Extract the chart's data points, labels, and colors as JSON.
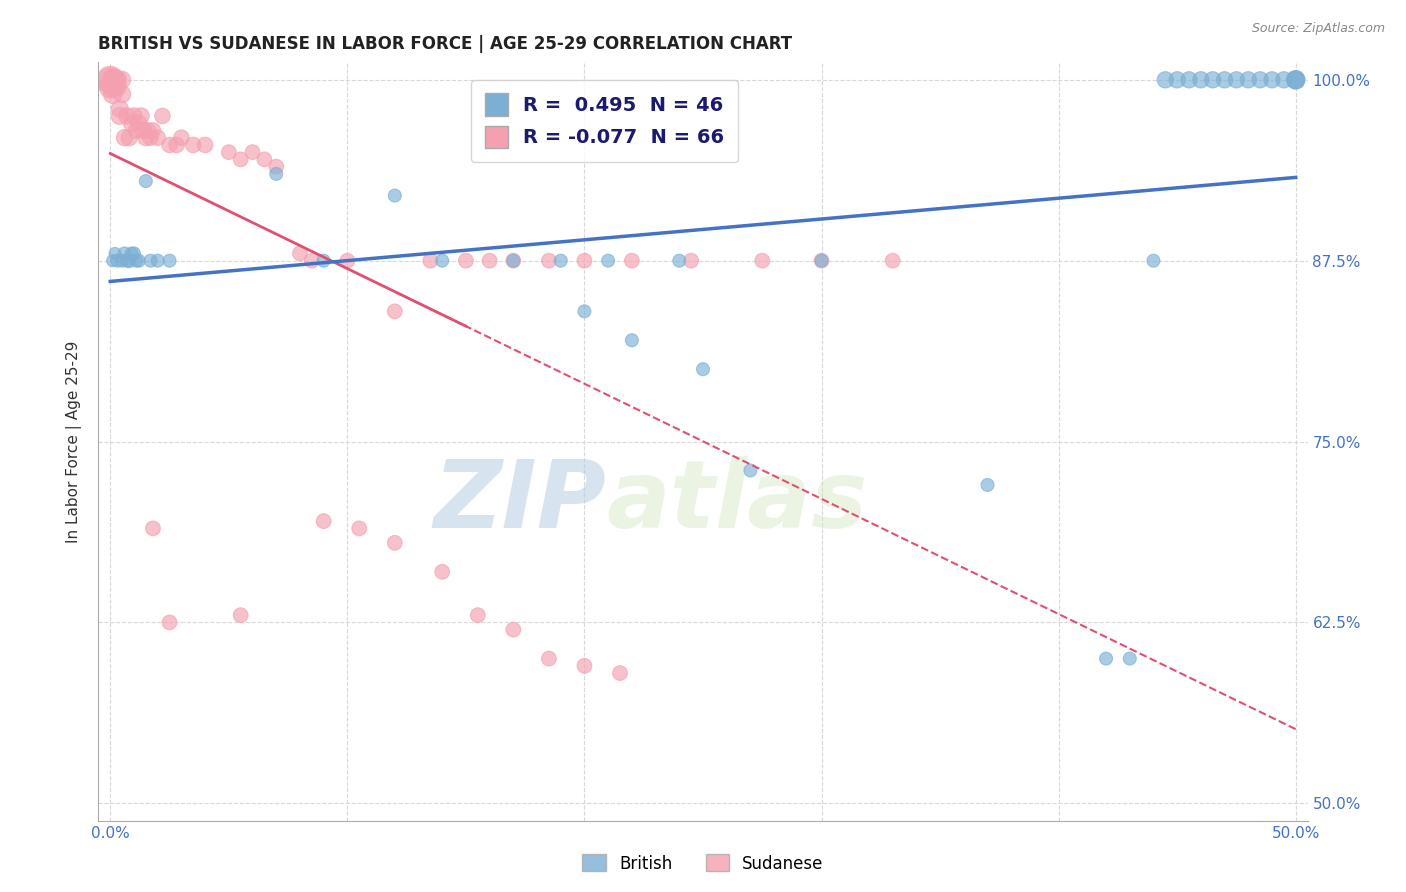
{
  "title": "BRITISH VS SUDANESE IN LABOR FORCE | AGE 25-29 CORRELATION CHART",
  "source": "Source: ZipAtlas.com",
  "ylabel": "In Labor Force | Age 25-29",
  "xlim": [
    -0.005,
    0.505
  ],
  "ylim": [
    0.488,
    1.012
  ],
  "xticks": [
    0.0,
    0.1,
    0.2,
    0.3,
    0.4,
    0.5
  ],
  "xticklabels": [
    "0.0%",
    "",
    "",
    "",
    "",
    "50.0%"
  ],
  "yticks": [
    0.5,
    0.625,
    0.75,
    0.875,
    1.0
  ],
  "yticklabels": [
    "50.0%",
    "62.5%",
    "75.0%",
    "87.5%",
    "100.0%"
  ],
  "british_color": "#7bafd4",
  "sudanese_color": "#f4a0b0",
  "british_line_color": "#4472c4",
  "sudanese_line_color": "#e05070",
  "british_R": 0.495,
  "british_N": 46,
  "sudanese_R": -0.077,
  "sudanese_N": 66,
  "watermark_zip": "ZIP",
  "watermark_atlas": "atlas",
  "background_color": "#ffffff",
  "grid_color": "#d8d8d8",
  "british_x": [
    0.001,
    0.002,
    0.003,
    0.005,
    0.006,
    0.007,
    0.008,
    0.009,
    0.01,
    0.011,
    0.012,
    0.015,
    0.017,
    0.02,
    0.025,
    0.07,
    0.09,
    0.12,
    0.14,
    0.17,
    0.19,
    0.2,
    0.21,
    0.22,
    0.24,
    0.25,
    0.27,
    0.3,
    0.37,
    0.42,
    0.43,
    0.44,
    0.445,
    0.45,
    0.455,
    0.46,
    0.465,
    0.47,
    0.475,
    0.48,
    0.485,
    0.49,
    0.495,
    0.5,
    0.5,
    0.5
  ],
  "british_y": [
    0.875,
    0.88,
    0.875,
    0.875,
    0.88,
    0.875,
    0.875,
    0.88,
    0.88,
    0.875,
    0.875,
    0.93,
    0.875,
    0.875,
    0.875,
    0.935,
    0.875,
    0.92,
    0.875,
    0.875,
    0.875,
    0.84,
    0.875,
    0.82,
    0.875,
    0.8,
    0.73,
    0.875,
    0.72,
    0.6,
    0.6,
    0.875,
    1.0,
    1.0,
    1.0,
    1.0,
    1.0,
    1.0,
    1.0,
    1.0,
    1.0,
    1.0,
    1.0,
    1.0,
    1.0,
    1.0
  ],
  "british_sizes": [
    30,
    30,
    35,
    35,
    35,
    35,
    40,
    35,
    35,
    35,
    35,
    35,
    35,
    35,
    35,
    35,
    35,
    35,
    35,
    35,
    35,
    35,
    35,
    35,
    35,
    35,
    35,
    35,
    35,
    35,
    35,
    35,
    55,
    55,
    55,
    55,
    55,
    55,
    55,
    55,
    55,
    55,
    55,
    55,
    70,
    70
  ],
  "sudanese_x": [
    0.0,
    0.0,
    0.0,
    0.001,
    0.001,
    0.001,
    0.002,
    0.002,
    0.003,
    0.003,
    0.004,
    0.004,
    0.005,
    0.005,
    0.006,
    0.007,
    0.008,
    0.009,
    0.01,
    0.011,
    0.012,
    0.013,
    0.014,
    0.015,
    0.016,
    0.017,
    0.018,
    0.02,
    0.022,
    0.025,
    0.028,
    0.03,
    0.035,
    0.04,
    0.05,
    0.055,
    0.06,
    0.065,
    0.07,
    0.08,
    0.085,
    0.1,
    0.12,
    0.135,
    0.15,
    0.16,
    0.17,
    0.185,
    0.2,
    0.22,
    0.245,
    0.275,
    0.3,
    0.33,
    0.09,
    0.105,
    0.12,
    0.14,
    0.155,
    0.17,
    0.185,
    0.2,
    0.215,
    0.055,
    0.025,
    0.018
  ],
  "sudanese_y": [
    1.0,
    1.0,
    0.995,
    1.0,
    0.995,
    0.99,
    1.0,
    0.995,
    1.0,
    0.995,
    0.98,
    0.975,
    1.0,
    0.99,
    0.96,
    0.975,
    0.96,
    0.97,
    0.975,
    0.965,
    0.97,
    0.975,
    0.965,
    0.96,
    0.965,
    0.96,
    0.965,
    0.96,
    0.975,
    0.955,
    0.955,
    0.96,
    0.955,
    0.955,
    0.95,
    0.945,
    0.95,
    0.945,
    0.94,
    0.88,
    0.875,
    0.875,
    0.84,
    0.875,
    0.875,
    0.875,
    0.875,
    0.875,
    0.875,
    0.875,
    0.875,
    0.875,
    0.875,
    0.875,
    0.695,
    0.69,
    0.68,
    0.66,
    0.63,
    0.62,
    0.6,
    0.595,
    0.59,
    0.63,
    0.625,
    0.69
  ],
  "sudanese_sizes": [
    150,
    120,
    100,
    90,
    80,
    70,
    80,
    70,
    70,
    65,
    60,
    60,
    60,
    60,
    55,
    55,
    55,
    55,
    55,
    55,
    55,
    55,
    55,
    55,
    50,
    50,
    50,
    50,
    50,
    50,
    50,
    50,
    50,
    50,
    45,
    45,
    45,
    45,
    45,
    45,
    45,
    45,
    45,
    45,
    45,
    45,
    45,
    45,
    45,
    45,
    45,
    45,
    45,
    45,
    45,
    45,
    45,
    45,
    45,
    45,
    45,
    45,
    45,
    45,
    45,
    45
  ]
}
